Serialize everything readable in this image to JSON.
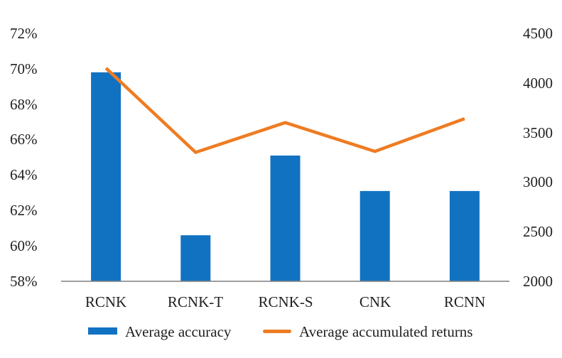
{
  "chart_data": {
    "type": "combo",
    "categories": [
      "RCNK",
      "RCNK-T",
      "RCNK-S",
      "CNK",
      "RCNN"
    ],
    "series": [
      {
        "name": "Average accuracy",
        "type": "bar",
        "axis": "left",
        "values": [
          69.8,
          60.6,
          65.1,
          63.1,
          63.1
        ],
        "color": "#1272C2"
      },
      {
        "name": "Average accumulated returns",
        "type": "line",
        "axis": "right",
        "values": [
          4150,
          3300,
          3600,
          3310,
          3640
        ],
        "color": "#EE7C23"
      }
    ],
    "left_axis": {
      "ticks": [
        "72%",
        "70%",
        "68%",
        "66%",
        "64%",
        "62%",
        "60%",
        "58%"
      ],
      "min": 58,
      "max": 72,
      "unit": "%"
    },
    "right_axis": {
      "ticks": [
        "4500",
        "4000",
        "3500",
        "3000",
        "2500",
        "2000"
      ],
      "min": 2000,
      "max": 4500
    },
    "legend": [
      {
        "label": "Average accuracy",
        "swatch": "bar"
      },
      {
        "label": "Average accumulated returns",
        "swatch": "line"
      }
    ],
    "grid": false,
    "legend_position": "bottom",
    "axis_line_color": "#7F7F7F",
    "background": "#FFFFFF"
  }
}
